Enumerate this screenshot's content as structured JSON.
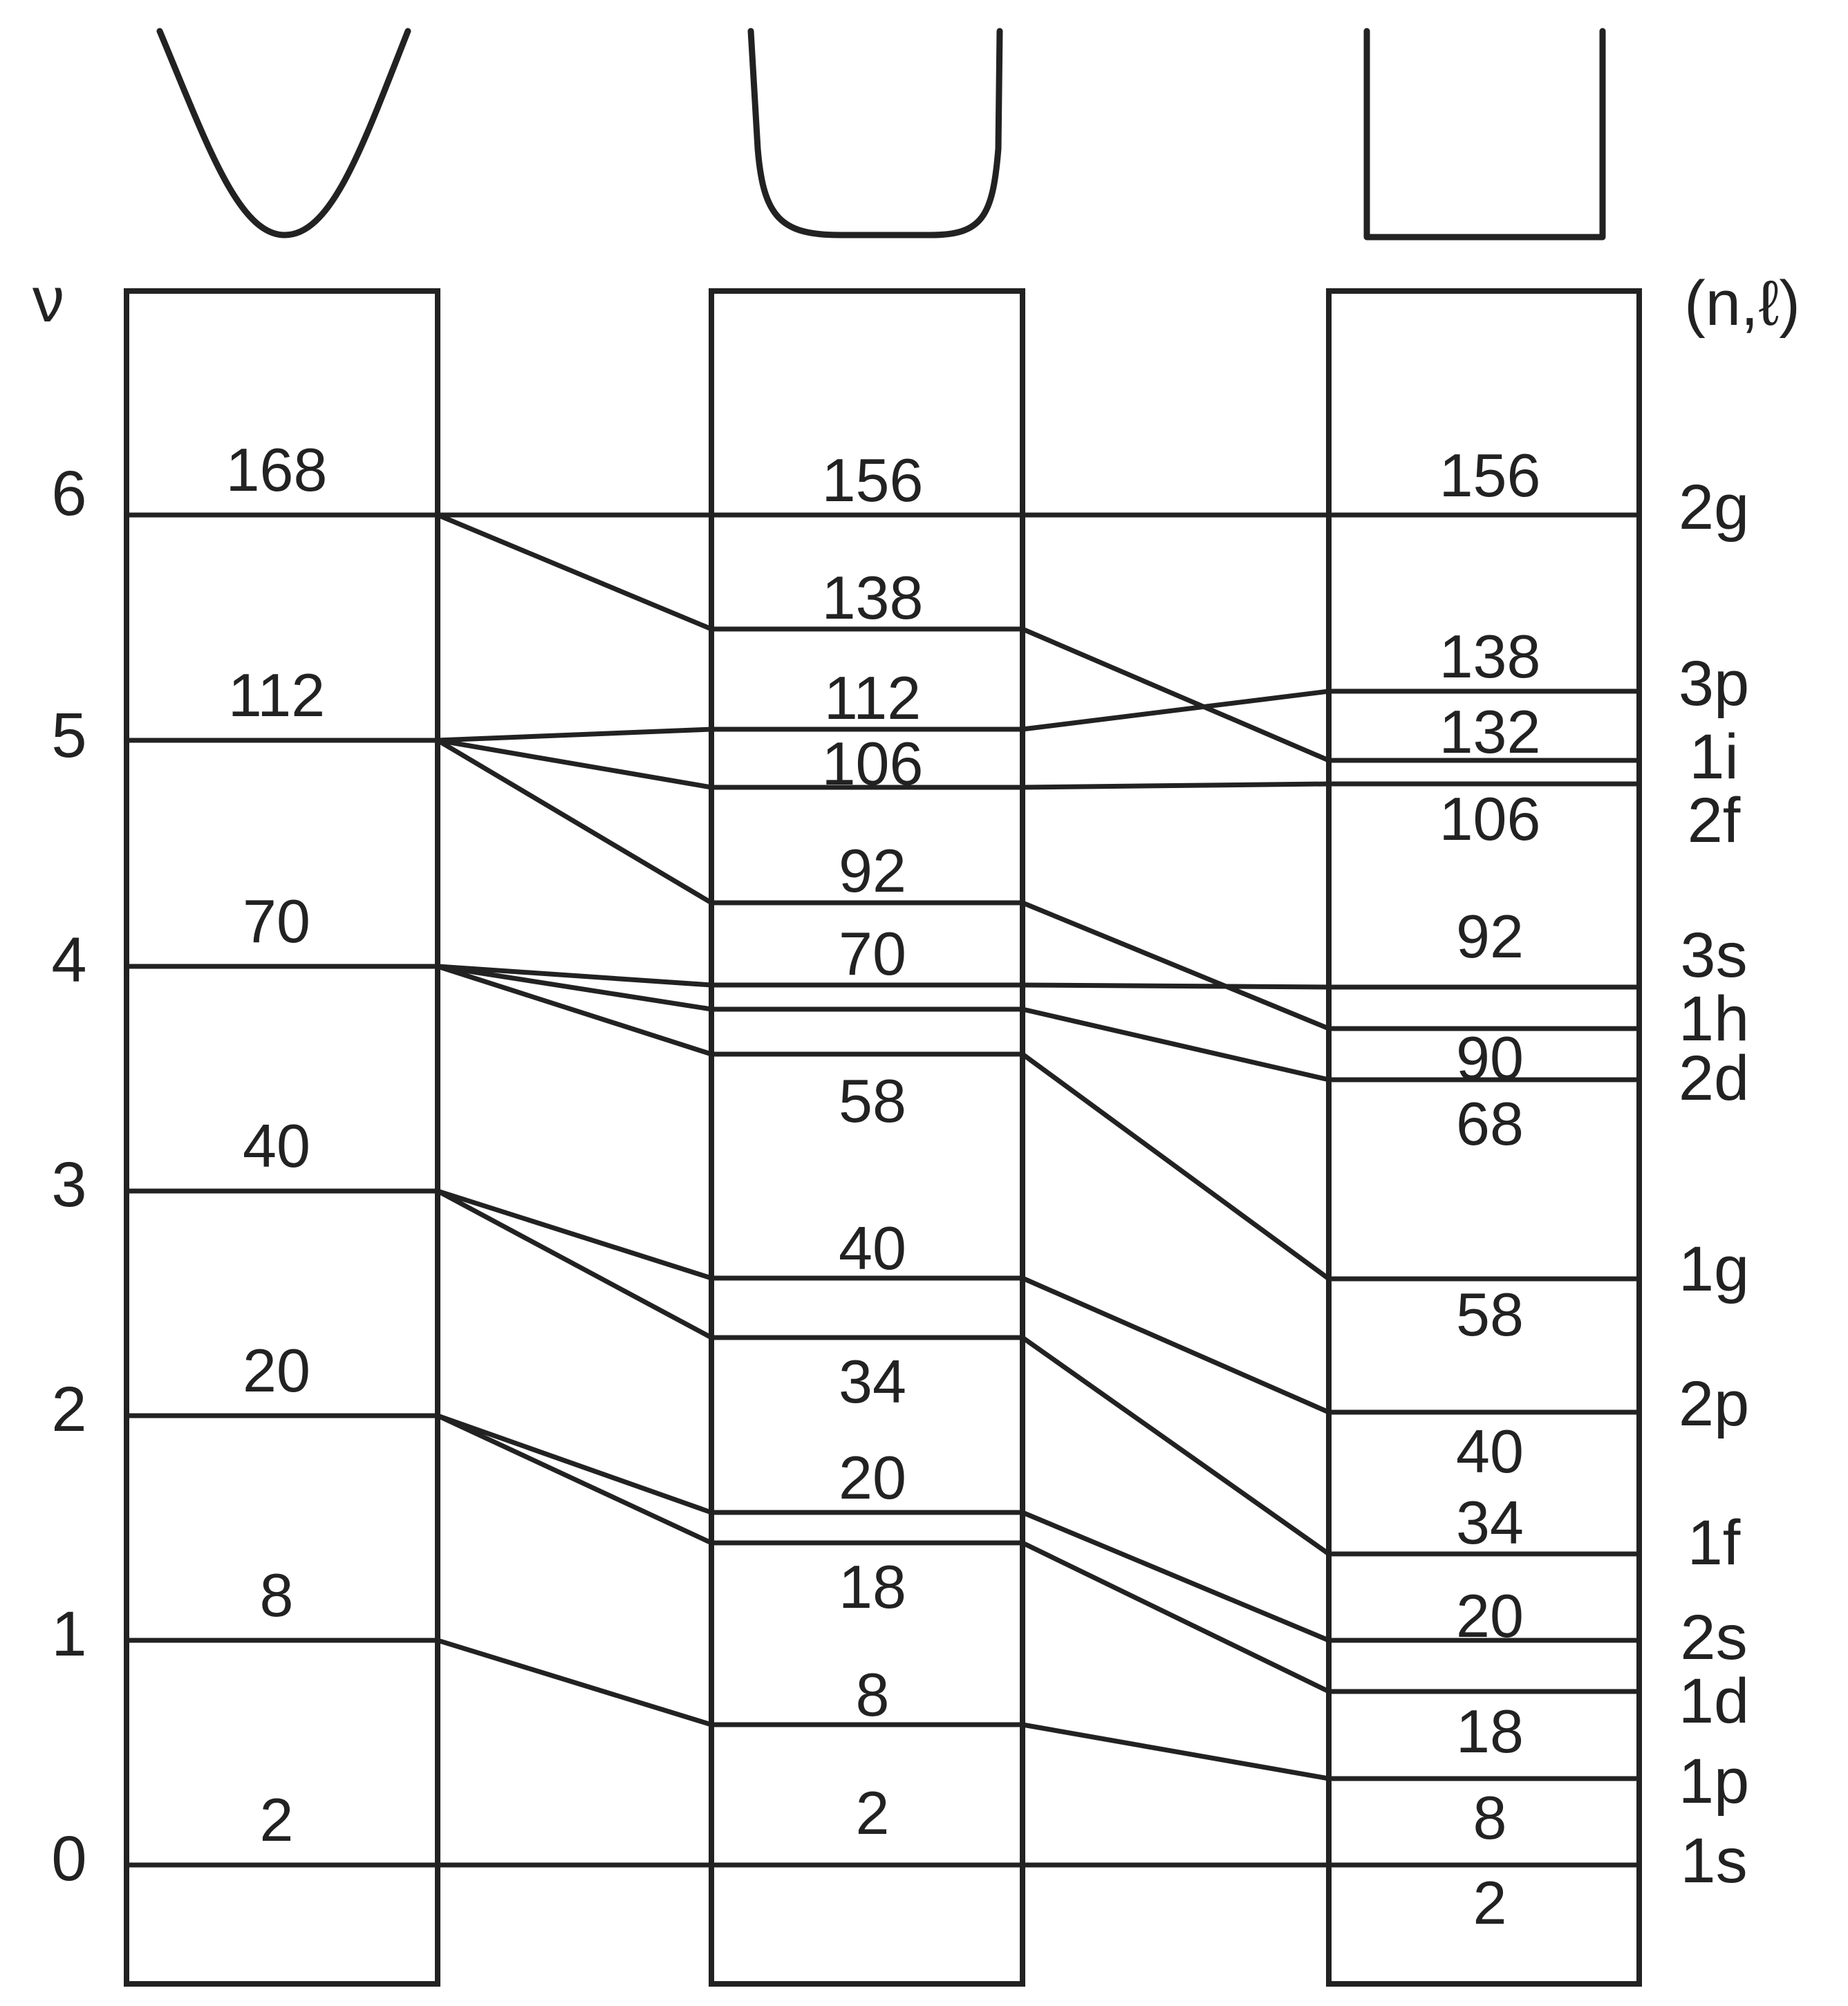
{
  "axis_left_label": "ν",
  "axis_right_label": "(n,ℓ)",
  "potentials": [
    {
      "name": "harmonic-oscillator-potential-icon"
    },
    {
      "name": "rounded-well-potential-icon"
    },
    {
      "name": "square-well-potential-icon"
    }
  ],
  "nu_ticks": [
    "0",
    "1",
    "2",
    "3",
    "4",
    "5",
    "6"
  ],
  "harmonic_magic_numbers": [
    "2",
    "8",
    "20",
    "40",
    "70",
    "112",
    "168"
  ],
  "middle_magic_numbers": [
    "2",
    "8",
    "18",
    "20",
    "34",
    "40",
    "58",
    "70",
    "92",
    "106",
    "112",
    "138",
    "156"
  ],
  "square_magic_numbers": [
    "2",
    "8",
    "18",
    "20",
    "34",
    "40",
    "58",
    "68",
    "90",
    "92",
    "106",
    "132",
    "138",
    "156"
  ],
  "nl_labels": [
    "1s",
    "1p",
    "1d",
    "2s",
    "1f",
    "2p",
    "1g",
    "2d",
    "1h",
    "3s",
    "2f",
    "1i",
    "3p",
    "2g"
  ],
  "colors": {
    "line": "#222222",
    "background": "#ffffff"
  }
}
